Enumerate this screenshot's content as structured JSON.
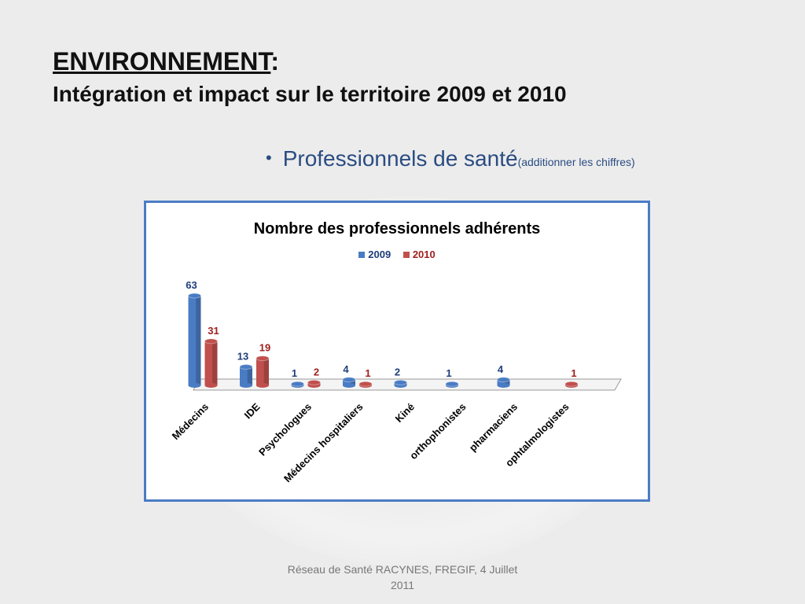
{
  "slide": {
    "title_main": "ENVIRONNEMENT",
    "title_colon": ":",
    "title_sub": "Intégration et impact sur le territoire 2009 et 2010",
    "bullet_text": "Professionnels de santé",
    "bullet_note": "(additionner les chiffres)",
    "footer_line1": "Réseau de Santé RACYNES, FREGIF, 4 Juillet",
    "footer_line2": "2011"
  },
  "colors": {
    "series_2009": "#4a7cc4",
    "series_2009_label": "#1f3d7a",
    "series_2010": "#c0504d",
    "series_2010_label": "#a02020",
    "chart_border": "#4a7cc4",
    "bullet_text": "#2a4c82"
  },
  "chart_data": {
    "type": "bar",
    "title": "Nombre des professionnels adhérents",
    "categories": [
      "Médecins",
      "IDE",
      "Psychologues",
      "Médecins hospitaliers",
      "Kiné",
      "orthophonistes",
      "pharmaciens",
      "ophtalmologistes"
    ],
    "series": [
      {
        "name": "2009",
        "values": [
          63,
          13,
          1,
          4,
          2,
          1,
          4,
          null
        ]
      },
      {
        "name": "2010",
        "values": [
          31,
          19,
          2,
          1,
          null,
          null,
          null,
          1
        ]
      }
    ],
    "legend_position": "top",
    "ylim": [
      0,
      63
    ],
    "grid": false,
    "xlabel": "",
    "ylabel": ""
  }
}
